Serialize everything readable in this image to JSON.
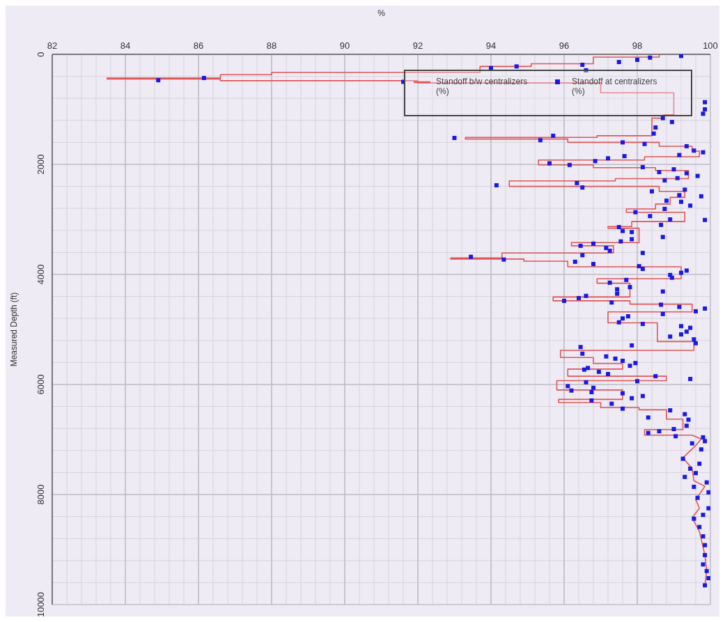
{
  "chart_data": {
    "type": "line",
    "xlabel": "%",
    "ylabel": "Measured Depth (ft)",
    "xlim": [
      82,
      100
    ],
    "xticks": [
      82,
      84,
      86,
      88,
      90,
      92,
      94,
      96,
      98,
      100
    ],
    "ylim": [
      10000,
      0
    ],
    "yticks": [
      0,
      2000,
      4000,
      6000,
      8000,
      10000
    ],
    "grid": true,
    "legend": "top right",
    "series": [
      {
        "name": "Standoff b/w centralizers\n(%)",
        "color": "#e05555",
        "marker": "none",
        "line_style": "solid",
        "x": [
          100,
          98.6,
          98.6,
          96.8,
          96.8,
          95.1,
          95.1,
          93.7,
          93.7,
          88,
          88,
          86.6,
          86.6,
          83.5,
          83.5,
          86.6,
          86.6,
          92,
          92,
          97,
          97,
          99,
          99,
          98.7,
          98.7,
          98.4,
          98.4,
          96.9,
          96.9,
          93.3,
          93.3,
          96.1,
          96.1,
          98.6,
          98.6,
          99.5,
          99.5,
          99.7,
          99.7,
          98.2,
          98.2,
          95.3,
          95.3,
          96.8,
          96.8,
          98.5,
          98.5,
          99.4,
          99.4,
          97.4,
          97.4,
          94.5,
          94.5,
          98.6,
          98.6,
          99.3,
          99.3,
          98.9,
          98.9,
          98.5,
          98.5,
          97.7,
          97.7,
          99.3,
          99.3,
          97.85,
          97.85,
          97.2,
          97.2,
          98.05,
          98.05,
          96.2,
          96.2,
          97.35,
          97.35,
          94.3,
          94.3,
          92.9,
          92.9,
          94.9,
          94.9,
          96.1,
          96.1,
          99.2,
          99.2,
          96.9,
          96.9,
          97.8,
          97.8,
          95.7,
          95.7,
          97.8,
          97.8,
          99.5,
          99.5,
          97.2,
          97.2,
          98.55,
          98.55,
          99.55,
          99.55,
          95.9,
          95.9,
          96.8,
          96.8,
          97.6,
          97.6,
          96.1,
          96.1,
          98.8,
          98.8,
          95.8,
          95.8,
          97.6,
          97.6,
          95.85,
          95.85,
          97.0,
          97.0,
          98.05,
          98.05,
          98.8,
          98.8,
          99.25,
          99.25,
          98.2,
          98.2,
          99.5,
          99.75,
          99.6,
          99.25,
          99.5,
          99.55,
          99.85,
          99.6,
          99.7,
          99.5,
          99.7,
          99.85,
          99.9,
          99.85
        ],
        "values": [
          0,
          0,
          50,
          50,
          170,
          170,
          220,
          220,
          330,
          330,
          370,
          370,
          430,
          430,
          450,
          450,
          480,
          480,
          520,
          520,
          700,
          700,
          1100,
          1100,
          1160,
          1160,
          1480,
          1480,
          1510,
          1510,
          1540,
          1540,
          1600,
          1600,
          1670,
          1670,
          1760,
          1760,
          1860,
          1860,
          1920,
          1920,
          2010,
          2010,
          2060,
          2060,
          2110,
          2110,
          2260,
          2260,
          2300,
          2300,
          2400,
          2400,
          2490,
          2490,
          2600,
          2600,
          2720,
          2720,
          2810,
          2810,
          2870,
          2870,
          3040,
          3040,
          3130,
          3130,
          3160,
          3160,
          3420,
          3420,
          3480,
          3480,
          3610,
          3610,
          3700,
          3700,
          3720,
          3720,
          3760,
          3760,
          3860,
          3860,
          4080,
          4080,
          4160,
          4160,
          4410,
          4410,
          4480,
          4480,
          4540,
          4540,
          4680,
          4680,
          4880,
          4880,
          5220,
          5220,
          5380,
          5380,
          5510,
          5510,
          5620,
          5620,
          5720,
          5720,
          5850,
          5850,
          5930,
          5930,
          6100,
          6100,
          6270,
          6270,
          6330,
          6330,
          6420,
          6420,
          6460,
          6460,
          6630,
          6630,
          6820,
          6820,
          6920,
          6920,
          6990,
          7110,
          7330,
          7530,
          7750,
          7850,
          8090,
          8250,
          8420,
          8670,
          9100,
          9390,
          9650
        ]
      },
      {
        "name": "Standoff at centralizers\n(%)",
        "type": "scatter",
        "color": "#1a1ae6",
        "marker": "square",
        "x": [
          99.2,
          98.35,
          98.0,
          97.5,
          96.5,
          96.6,
          94.7,
          94.0,
          86.15,
          84.9,
          91.6,
          99.85,
          99.85,
          99.8,
          98.7,
          98.95,
          98.5,
          98.45,
          93.0,
          95.35,
          95.7,
          97.6,
          98.2,
          99.35,
          99.55,
          99.8,
          99.15,
          95.6,
          96.15,
          96.85,
          97.2,
          97.65,
          98.15,
          98.6,
          99.0,
          99.35,
          99.65,
          99.1,
          98.75,
          94.15,
          96.35,
          96.5,
          98.4,
          99.3,
          99.15,
          99.75,
          99.2,
          98.8,
          99.45,
          98.75,
          97.95,
          98.35,
          98.9,
          99.85,
          98.65,
          97.5,
          97.6,
          97.85,
          98.7,
          97.55,
          97.85,
          96.8,
          96.45,
          97.15,
          97.25,
          98.15,
          96.5,
          93.45,
          94.35,
          96.3,
          96.8,
          98.05,
          98.15,
          99.35,
          99.2,
          98.9,
          98.95,
          97.7,
          97.25,
          97.8,
          97.45,
          97.45,
          98.7,
          96.6,
          96.4,
          96.0,
          97.3,
          98.65,
          99.15,
          99.6,
          99.85,
          98.7,
          97.75,
          97.6,
          97.5,
          98.15,
          99.2,
          99.45,
          99.35,
          99.2,
          98.9,
          99.55,
          99.6,
          97.85,
          96.45,
          96.5,
          97.15,
          97.4,
          97.6,
          97.95,
          97.8,
          96.65,
          96.55,
          96.95,
          97.2,
          98.5,
          99.45,
          98.0,
          96.6,
          96.1,
          96.2,
          96.8,
          96.75,
          97.6,
          97.85,
          98.15,
          96.75,
          97.3,
          97.6,
          98.3,
          98.9,
          99.3,
          99.4,
          99.35,
          99.0,
          98.6,
          98.3,
          99.05,
          99.8,
          99.5,
          99.85,
          99.75,
          99.25,
          99.7,
          99.45,
          99.6,
          99.3,
          99.9,
          99.55,
          99.95,
          99.65,
          99.95,
          99.8,
          99.55,
          99.7,
          99.8,
          99.85,
          99.85,
          99.8,
          99.9,
          99.95,
          99.85
        ],
        "values": [
          30,
          60,
          100,
          140,
          190,
          290,
          220,
          250,
          430,
          470,
          500,
          870,
          1000,
          1080,
          1160,
          1230,
          1330,
          1440,
          1520,
          1560,
          1480,
          1600,
          1630,
          1670,
          1750,
          1780,
          1830,
          1980,
          2010,
          1940,
          1890,
          1850,
          2050,
          2140,
          2090,
          2160,
          2210,
          2250,
          2290,
          2380,
          2340,
          2420,
          2490,
          2460,
          2560,
          2580,
          2680,
          2660,
          2750,
          2810,
          2870,
          2940,
          3000,
          3010,
          3100,
          3140,
          3210,
          3230,
          3320,
          3400,
          3360,
          3440,
          3480,
          3520,
          3570,
          3610,
          3650,
          3680,
          3730,
          3770,
          3810,
          3850,
          3900,
          3930,
          3970,
          4010,
          4060,
          4100,
          4150,
          4230,
          4270,
          4350,
          4310,
          4390,
          4430,
          4480,
          4510,
          4550,
          4590,
          4670,
          4620,
          4720,
          4760,
          4800,
          4870,
          4900,
          4940,
          4970,
          5040,
          5090,
          5130,
          5180,
          5250,
          5290,
          5320,
          5440,
          5490,
          5530,
          5570,
          5610,
          5660,
          5700,
          5730,
          5770,
          5810,
          5850,
          5900,
          5940,
          5960,
          6030,
          6110,
          6060,
          6140,
          6160,
          6250,
          6210,
          6290,
          6350,
          6440,
          6600,
          6470,
          6540,
          6640,
          6750,
          6810,
          6850,
          6880,
          6940,
          6960,
          7070,
          7030,
          7180,
          7350,
          7440,
          7530,
          7610,
          7680,
          7780,
          7860,
          7960,
          8060,
          8250,
          8370,
          8440,
          8590,
          8760,
          8920,
          9100,
          9270,
          9390,
          9520,
          9650
        ]
      }
    ]
  }
}
